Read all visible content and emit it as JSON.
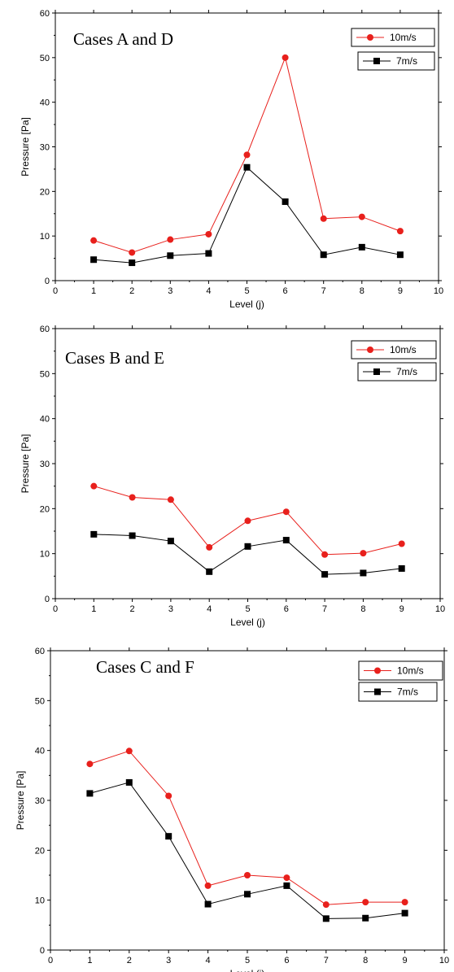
{
  "chart_data": [
    {
      "type": "line",
      "title": "Cases A and D",
      "xlabel": "Level (j)",
      "ylabel": "Pressure [Pa]",
      "xlim": [
        0,
        10
      ],
      "ylim": [
        0,
        60
      ],
      "xticks": [
        0,
        1,
        2,
        3,
        4,
        5,
        6,
        7,
        8,
        9,
        10
      ],
      "yticks": [
        0,
        10,
        20,
        30,
        40,
        50,
        60
      ],
      "grid": false,
      "legend": "top-right",
      "x": [
        1,
        2,
        3,
        4,
        5,
        6,
        7,
        8,
        9
      ],
      "series": [
        {
          "name": "10m/s",
          "color": "#e8201c",
          "marker": "circle",
          "values": [
            9.0,
            6.3,
            9.2,
            10.4,
            28.2,
            50.0,
            13.9,
            14.3,
            11.1
          ]
        },
        {
          "name": "7m/s",
          "color": "#000000",
          "marker": "square",
          "values": [
            4.7,
            4.0,
            5.6,
            6.1,
            25.4,
            17.7,
            5.8,
            7.5,
            5.8
          ]
        }
      ]
    },
    {
      "type": "line",
      "title": "Cases B and E",
      "xlabel": "Level (j)",
      "ylabel": "Pressure [Pa]",
      "xlim": [
        0,
        10
      ],
      "ylim": [
        0,
        60
      ],
      "xticks": [
        0,
        1,
        2,
        3,
        4,
        5,
        6,
        7,
        8,
        9,
        10
      ],
      "yticks": [
        0,
        10,
        20,
        30,
        40,
        50,
        60
      ],
      "grid": false,
      "legend": "top-right",
      "x": [
        1,
        2,
        3,
        4,
        5,
        6,
        7,
        8,
        9
      ],
      "series": [
        {
          "name": "10m/s",
          "color": "#e8201c",
          "marker": "circle",
          "values": [
            25.0,
            22.5,
            22.0,
            11.4,
            17.3,
            19.3,
            9.8,
            10.1,
            12.2
          ]
        },
        {
          "name": "7m/s",
          "color": "#000000",
          "marker": "square",
          "values": [
            14.3,
            14.0,
            12.8,
            6.0,
            11.6,
            13.0,
            5.4,
            5.7,
            6.7
          ]
        }
      ]
    },
    {
      "type": "line",
      "title": "Cases C and F",
      "xlabel": "Level (j)",
      "ylabel": "Pressure [Pa]",
      "xlim": [
        0,
        10
      ],
      "ylim": [
        0,
        60
      ],
      "xticks": [
        0,
        1,
        2,
        3,
        4,
        5,
        6,
        7,
        8,
        9,
        10
      ],
      "yticks": [
        0,
        10,
        20,
        30,
        40,
        50,
        60
      ],
      "grid": false,
      "legend": "top-right",
      "x": [
        1,
        2,
        3,
        4,
        5,
        6,
        7,
        8,
        9
      ],
      "series": [
        {
          "name": "10m/s",
          "color": "#e8201c",
          "marker": "circle",
          "values": [
            37.3,
            39.9,
            30.9,
            12.9,
            15.0,
            14.5,
            9.1,
            9.6,
            9.6
          ]
        },
        {
          "name": "7m/s",
          "color": "#000000",
          "marker": "square",
          "values": [
            31.4,
            33.6,
            22.8,
            9.2,
            11.2,
            12.9,
            6.3,
            6.4,
            7.4
          ]
        }
      ]
    }
  ]
}
